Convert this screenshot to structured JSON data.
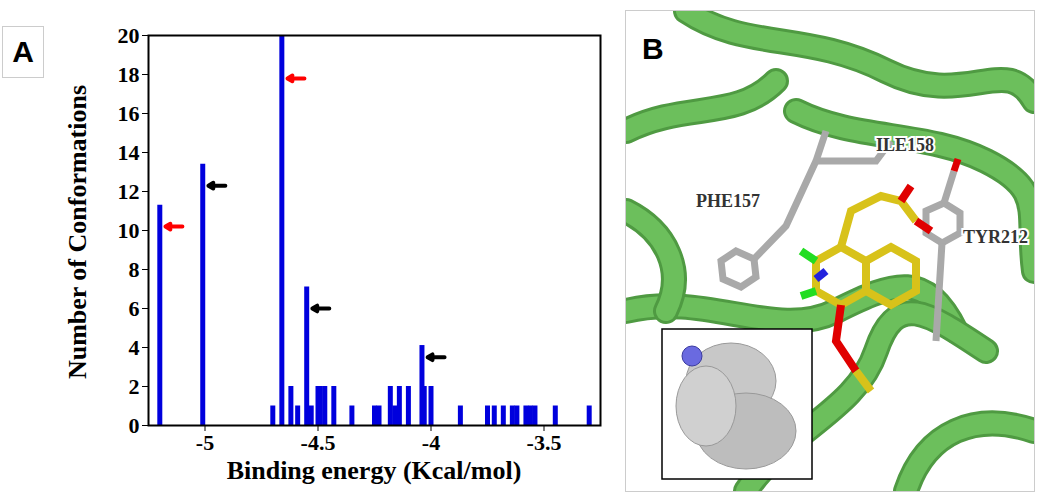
{
  "chart_data": {
    "type": "bar",
    "panel_label": "A",
    "xlabel": "Binding energy (Kcal/mol)",
    "ylabel": "Number of Conformations",
    "x": [
      -5.2,
      -5.01,
      -4.7,
      -4.66,
      -4.62,
      -4.59,
      -4.55,
      -4.53,
      -4.5,
      -4.49,
      -4.47,
      -4.43,
      -4.35,
      -4.25,
      -4.23,
      -4.18,
      -4.16,
      -4.14,
      -4.1,
      -4.04,
      -4.03,
      -4.0,
      -3.87,
      -3.75,
      -3.72,
      -3.68,
      -3.64,
      -3.62,
      -3.58,
      -3.56,
      -3.54,
      -3.45,
      -3.3
    ],
    "values": [
      11.3,
      13.4,
      1,
      20,
      2,
      1,
      7.1,
      1,
      2,
      2,
      2,
      2,
      1,
      1,
      1,
      2,
      1,
      2,
      2,
      4.1,
      2,
      2,
      1,
      1,
      1,
      1,
      1,
      1,
      1,
      1,
      1,
      1,
      1
    ],
    "color": "#0000dd",
    "xlim": [
      -5.25,
      -3.25
    ],
    "xticks": [
      -5,
      -4.5,
      -4,
      -3.5
    ],
    "ylim": [
      0,
      20
    ],
    "yticks": [
      0,
      2,
      4,
      6,
      8,
      10,
      12,
      14,
      16,
      18,
      20
    ],
    "grid": false,
    "arrows": [
      {
        "x": -5.2,
        "y": 10.2,
        "color": "#ff0000"
      },
      {
        "x": -5.01,
        "y": 12.3,
        "color": "#000000"
      },
      {
        "x": -4.66,
        "y": 17.8,
        "color": "#ff0000"
      },
      {
        "x": -4.55,
        "y": 6.0,
        "color": "#000000"
      },
      {
        "x": -4.04,
        "y": 3.5,
        "color": "#000000"
      }
    ]
  },
  "panel_b": {
    "panel_label": "B",
    "labels": [
      "PHE157",
      "ILE158",
      "TYR212"
    ]
  }
}
